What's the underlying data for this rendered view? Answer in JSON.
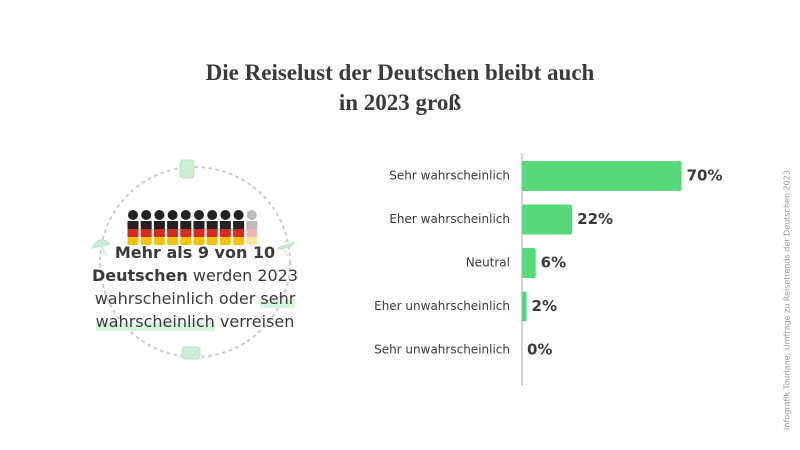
{
  "chart_data": {
    "type": "bar",
    "orientation": "horizontal",
    "title": "Die Reiselust der Deutschen bleibt auch in 2023 groß",
    "categories": [
      "Sehr wahrscheinlich",
      "Eher wahrscheinlich",
      "Neutral",
      "Eher unwahrscheinlich",
      "Sehr unwahrscheinlich"
    ],
    "values": [
      70,
      22,
      6,
      2,
      0
    ],
    "value_labels": [
      "70%",
      "22%",
      "6%",
      "2%",
      "0%"
    ],
    "color": "#57d97a",
    "xlim": [
      0,
      100
    ]
  },
  "callout": {
    "bold": "Mehr als 9 von 10 Deutschen",
    "text": "werden 2023 wahrscheinlich oder",
    "highlight": "sehr wahrscheinlich",
    "end": "verreisen"
  },
  "icon_array": {
    "total": 10,
    "filled": 9
  },
  "source": "Infografik Tourlane; Umfrage zu Reisetrends der Deutschen 2023"
}
